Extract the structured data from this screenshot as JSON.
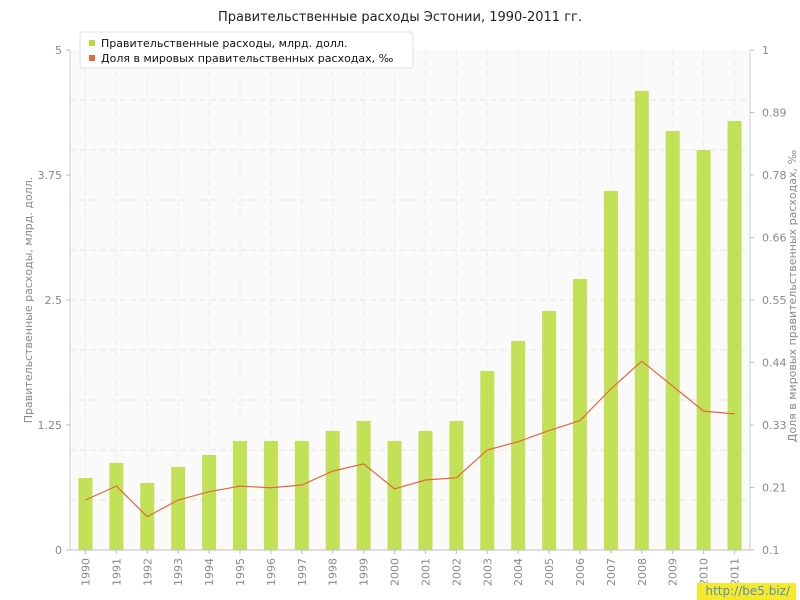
{
  "title": "Правительственные расходы Эстонии, 1990-2011 гг.",
  "watermark": "http://be5.biz/",
  "chart_data": {
    "type": "bar+line",
    "title": "Правительственные расходы Эстонии, 1990-2011 гг.",
    "categories": [
      "1990",
      "1991",
      "1992",
      "1993",
      "1994",
      "1995",
      "1996",
      "1997",
      "1998",
      "1999",
      "2000",
      "2001",
      "2002",
      "2003",
      "2004",
      "2005",
      "2006",
      "2007",
      "2008",
      "2009",
      "2010",
      "2011"
    ],
    "series": [
      {
        "name": "Правительственные расходы, млрд. долл.",
        "type": "bar",
        "axis": "left",
        "color": "#b8dc3a",
        "values": [
          0.72,
          0.87,
          0.67,
          0.83,
          0.95,
          1.09,
          1.09,
          1.09,
          1.19,
          1.29,
          1.09,
          1.19,
          1.29,
          1.79,
          2.09,
          2.39,
          2.71,
          3.59,
          4.59,
          4.19,
          4.0,
          4.29
        ]
      },
      {
        "name": "Доля в мировых правительственных расходах, ‰",
        "type": "line",
        "axis": "right",
        "color": "#e06a3a",
        "values": [
          0.19,
          0.215,
          0.16,
          0.19,
          0.205,
          0.215,
          0.212,
          0.217,
          0.242,
          0.255,
          0.21,
          0.226,
          0.23,
          0.28,
          0.295,
          0.315,
          0.333,
          0.39,
          0.44,
          0.395,
          0.35,
          0.345
        ]
      }
    ],
    "ylabel": "Правительственные расходы, млрд. долл.",
    "ylabel_right": "Доля в мировых правительственных расходах, ‰",
    "ylim": [
      0,
      5
    ],
    "ylim_right": [
      0.1,
      1
    ],
    "yticks": [
      "0",
      "1.25",
      "2.5",
      "3.75",
      "5"
    ],
    "yticks_right": [
      "0.1",
      "0.21",
      "0.33",
      "0.44",
      "0.55",
      "0.66",
      "0.78",
      "0.89",
      "1"
    ],
    "grid": true,
    "legend_position": "top-left"
  }
}
